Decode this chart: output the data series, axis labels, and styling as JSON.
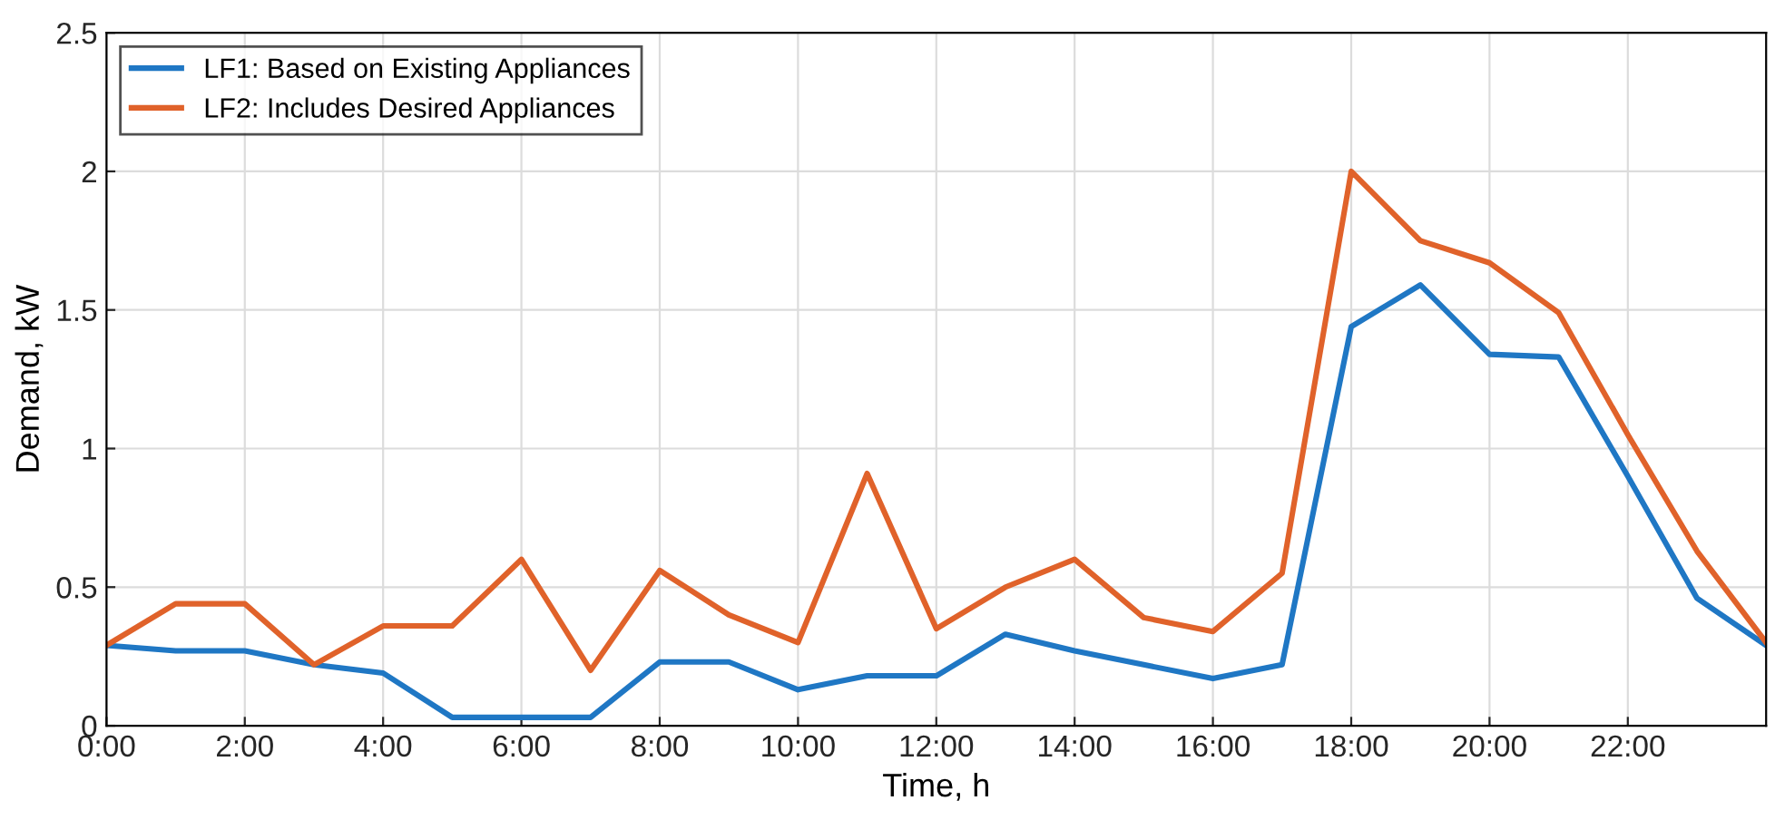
{
  "chart_data": {
    "type": "line",
    "xlabel": "Time, h",
    "ylabel": "Demand, kW",
    "x": [
      0,
      1,
      2,
      3,
      4,
      5,
      6,
      7,
      8,
      9,
      10,
      11,
      12,
      13,
      14,
      15,
      16,
      17,
      18,
      19,
      20,
      21,
      22,
      23,
      24
    ],
    "series": [
      {
        "name": "LF1: Based on Existing Appliances",
        "color": "#1f77c4",
        "values": [
          0.29,
          0.27,
          0.27,
          0.22,
          0.19,
          0.03,
          0.03,
          0.03,
          0.23,
          0.23,
          0.13,
          0.18,
          0.18,
          0.33,
          0.27,
          0.22,
          0.17,
          0.22,
          1.44,
          1.59,
          1.34,
          1.33,
          0.9,
          0.46,
          0.29
        ]
      },
      {
        "name": "LF2: Includes Desired Appliances",
        "color": "#e0622a",
        "values": [
          0.29,
          0.44,
          0.44,
          0.22,
          0.36,
          0.36,
          0.6,
          0.2,
          0.56,
          0.4,
          0.3,
          0.91,
          0.35,
          0.5,
          0.6,
          0.39,
          0.34,
          0.55,
          2.0,
          1.75,
          1.67,
          1.49,
          1.05,
          0.63,
          0.3
        ]
      }
    ],
    "xlim": [
      0,
      24
    ],
    "xticks": [
      {
        "value": 0,
        "label": "0:00"
      },
      {
        "value": 2,
        "label": "2:00"
      },
      {
        "value": 4,
        "label": "4:00"
      },
      {
        "value": 6,
        "label": "6:00"
      },
      {
        "value": 8,
        "label": "8:00"
      },
      {
        "value": 10,
        "label": "10:00"
      },
      {
        "value": 12,
        "label": "12:00"
      },
      {
        "value": 14,
        "label": "14:00"
      },
      {
        "value": 16,
        "label": "16:00"
      },
      {
        "value": 18,
        "label": "18:00"
      },
      {
        "value": 20,
        "label": "20:00"
      },
      {
        "value": 22,
        "label": "22:00"
      }
    ],
    "ylim": [
      0,
      2.5
    ],
    "yticks": [
      0,
      0.5,
      1,
      1.5,
      2,
      2.5
    ],
    "grid": true,
    "legend": "top left",
    "marker": "none",
    "line_style": "solid"
  }
}
